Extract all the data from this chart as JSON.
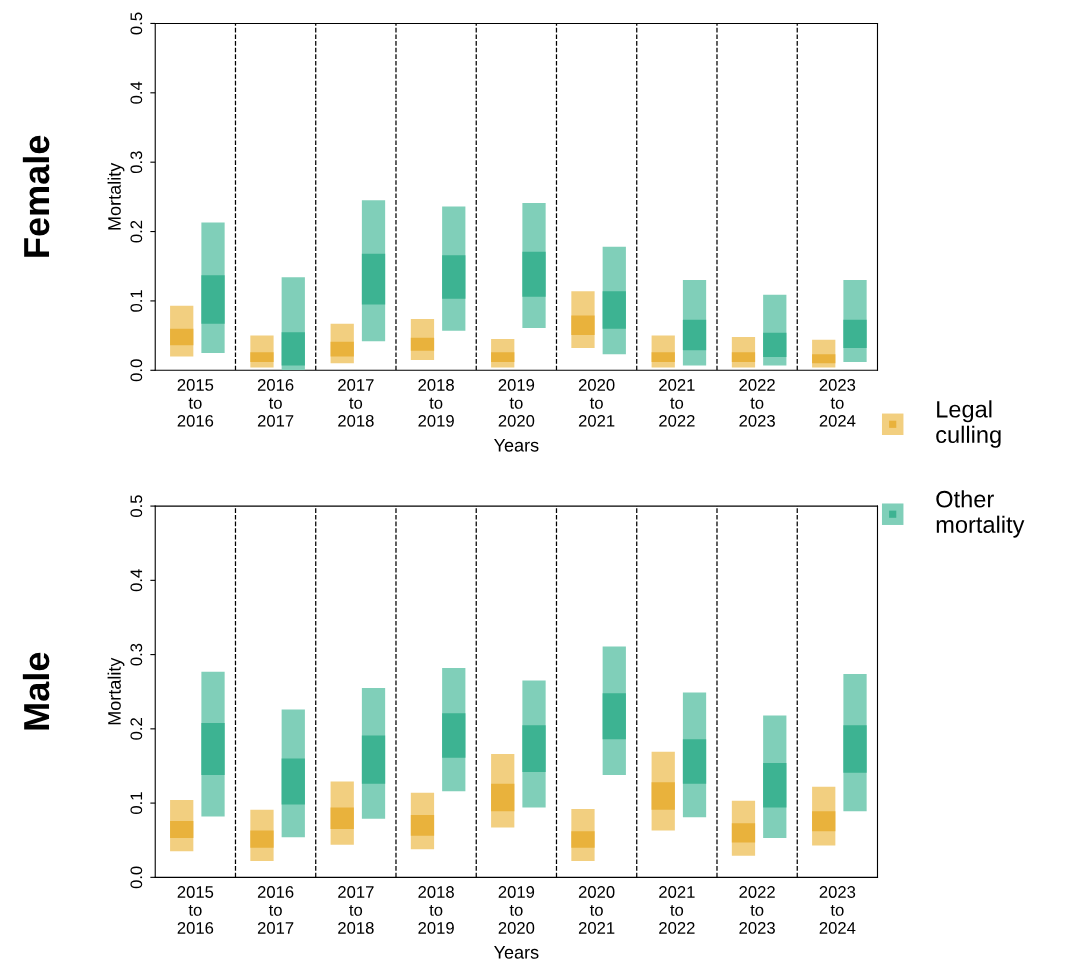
{
  "chart_data": [
    {
      "type": "bar",
      "title": "Female",
      "xlabel": "Years",
      "ylabel": "Mortality",
      "categories": [
        "2015\nto\n2016",
        "2016\nto\n2017",
        "2017\nto\n2018",
        "2018\nto\n2019",
        "2019\nto\n2020",
        "2020\nto\n2021",
        "2021\nto\n2022",
        "2022\nto\n2023",
        "2023\nto\n2024"
      ],
      "ylim": [
        0,
        0.5
      ],
      "yticks": [
        {
          "value": 0,
          "label": "0.0"
        },
        0.1,
        0.2,
        0.3,
        0.4,
        0.5
      ],
      "grid": false,
      "legend": "right",
      "series": [
        {
          "name": "Legal culling",
          "color": "#f2cf80",
          "base": [
            0.02,
            0.004,
            0.01,
            0.015,
            0.004,
            0.032,
            0.004,
            0.004,
            0.004
          ],
          "values": [
            0.073,
            0.046,
            0.057,
            0.059,
            0.041,
            0.082,
            0.046,
            0.044,
            0.04
          ]
        },
        {
          "color": "#e9b23c",
          "base": [
            0.036,
            0.012,
            0.02,
            0.028,
            0.012,
            0.051,
            0.012,
            0.012,
            0.01
          ],
          "values": [
            0.024,
            0.014,
            0.021,
            0.019,
            0.014,
            0.028,
            0.014,
            0.014,
            0.013
          ]
        },
        {
          "name": "Other mortality",
          "color": "#80cfb9",
          "base": [
            0.025,
            0.0,
            0.042,
            0.057,
            0.061,
            0.023,
            0.007,
            0.007,
            0.012
          ],
          "values": [
            0.188,
            0.134,
            0.203,
            0.179,
            0.18,
            0.155,
            0.123,
            0.102,
            0.118
          ]
        },
        {
          "color": "#3db392",
          "base": [
            0.067,
            0.007,
            0.095,
            0.103,
            0.106,
            0.06,
            0.029,
            0.019,
            0.032
          ],
          "values": [
            0.07,
            0.048,
            0.073,
            0.063,
            0.065,
            0.054,
            0.044,
            0.035,
            0.041
          ]
        }
      ]
    },
    {
      "type": "bar",
      "title": "Male",
      "xlabel": "Years",
      "ylabel": "Mortality",
      "categories": [
        "2015\nto\n2016",
        "2016\nto\n2017",
        "2017\nto\n2018",
        "2018\nto\n2019",
        "2019\nto\n2020",
        "2020\nto\n2021",
        "2021\nto\n2022",
        "2022\nto\n2023",
        "2023\nto\n2024"
      ],
      "ylim": [
        0,
        0.5
      ],
      "yticks": [
        {
          "value": 0,
          "label": "0.0"
        },
        0.1,
        0.2,
        0.3,
        0.4,
        0.5
      ],
      "grid": false,
      "series": [
        {
          "color": "#f2cf80",
          "base": [
            0.035,
            0.022,
            0.044,
            0.038,
            0.067,
            0.022,
            0.063,
            0.029,
            0.043
          ],
          "values": [
            0.069,
            0.069,
            0.085,
            0.076,
            0.099,
            0.07,
            0.106,
            0.074,
            0.079
          ]
        },
        {
          "color": "#e9b23c",
          "base": [
            0.053,
            0.04,
            0.065,
            0.056,
            0.089,
            0.04,
            0.091,
            0.047,
            0.062
          ],
          "values": [
            0.023,
            0.023,
            0.029,
            0.028,
            0.037,
            0.022,
            0.037,
            0.026,
            0.027
          ]
        },
        {
          "color": "#80cfb9",
          "base": [
            0.082,
            0.054,
            0.079,
            0.116,
            0.094,
            0.138,
            0.081,
            0.053,
            0.089
          ],
          "values": [
            0.195,
            0.172,
            0.176,
            0.166,
            0.171,
            0.173,
            0.168,
            0.165,
            0.185
          ]
        },
        {
          "color": "#3db392",
          "base": [
            0.138,
            0.098,
            0.126,
            0.161,
            0.142,
            0.186,
            0.126,
            0.094,
            0.141
          ],
          "values": [
            0.07,
            0.062,
            0.065,
            0.06,
            0.063,
            0.062,
            0.06,
            0.06,
            0.064
          ]
        }
      ]
    }
  ]
}
